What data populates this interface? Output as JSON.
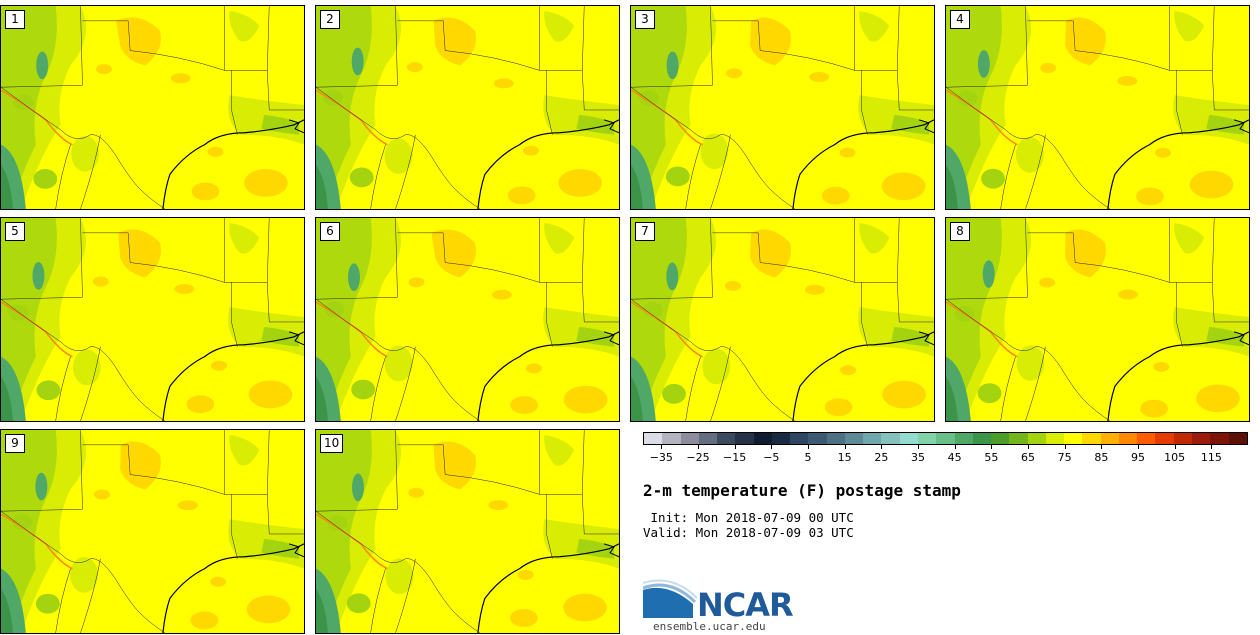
{
  "panels": [
    {
      "label": "1"
    },
    {
      "label": "2"
    },
    {
      "label": "3"
    },
    {
      "label": "4"
    },
    {
      "label": "5"
    },
    {
      "label": "6"
    },
    {
      "label": "7"
    },
    {
      "label": "8"
    },
    {
      "label": "9"
    },
    {
      "label": "10"
    }
  ],
  "legend": {
    "colors": [
      "#dcdce6",
      "#b4b4c0",
      "#8c8c9c",
      "#646e80",
      "#3c4a5e",
      "#263246",
      "#101c30",
      "#1a2a40",
      "#2e4660",
      "#3e5a72",
      "#4e7084",
      "#5e8a98",
      "#70a6ac",
      "#84c0bc",
      "#94dcd0",
      "#80d4a8",
      "#68c088",
      "#50a868",
      "#3c9448",
      "#4c9c2c",
      "#74b41c",
      "#a4d410",
      "#d8ec04",
      "#ffff00",
      "#ffd800",
      "#ffb000",
      "#ff8800",
      "#ff5c00",
      "#e63c00",
      "#c02800",
      "#9c1c0c",
      "#7c1408",
      "#5c1006"
    ],
    "tick_labels": [
      "−35",
      "−25",
      "−15",
      "−5",
      "5",
      "15",
      "25",
      "35",
      "45",
      "55",
      "65",
      "75",
      "85",
      "95",
      "105",
      "115"
    ],
    "range": [
      -40,
      125
    ]
  },
  "title": "2-m temperature (F) postage stamp",
  "init": " Init: Mon 2018-07-09 00 UTC",
  "valid": "Valid: Mon 2018-07-09 03 UTC",
  "logo": {
    "text": "NCAR",
    "site": "ensemble.ucar.edu",
    "color": "#1f5a9a"
  }
}
